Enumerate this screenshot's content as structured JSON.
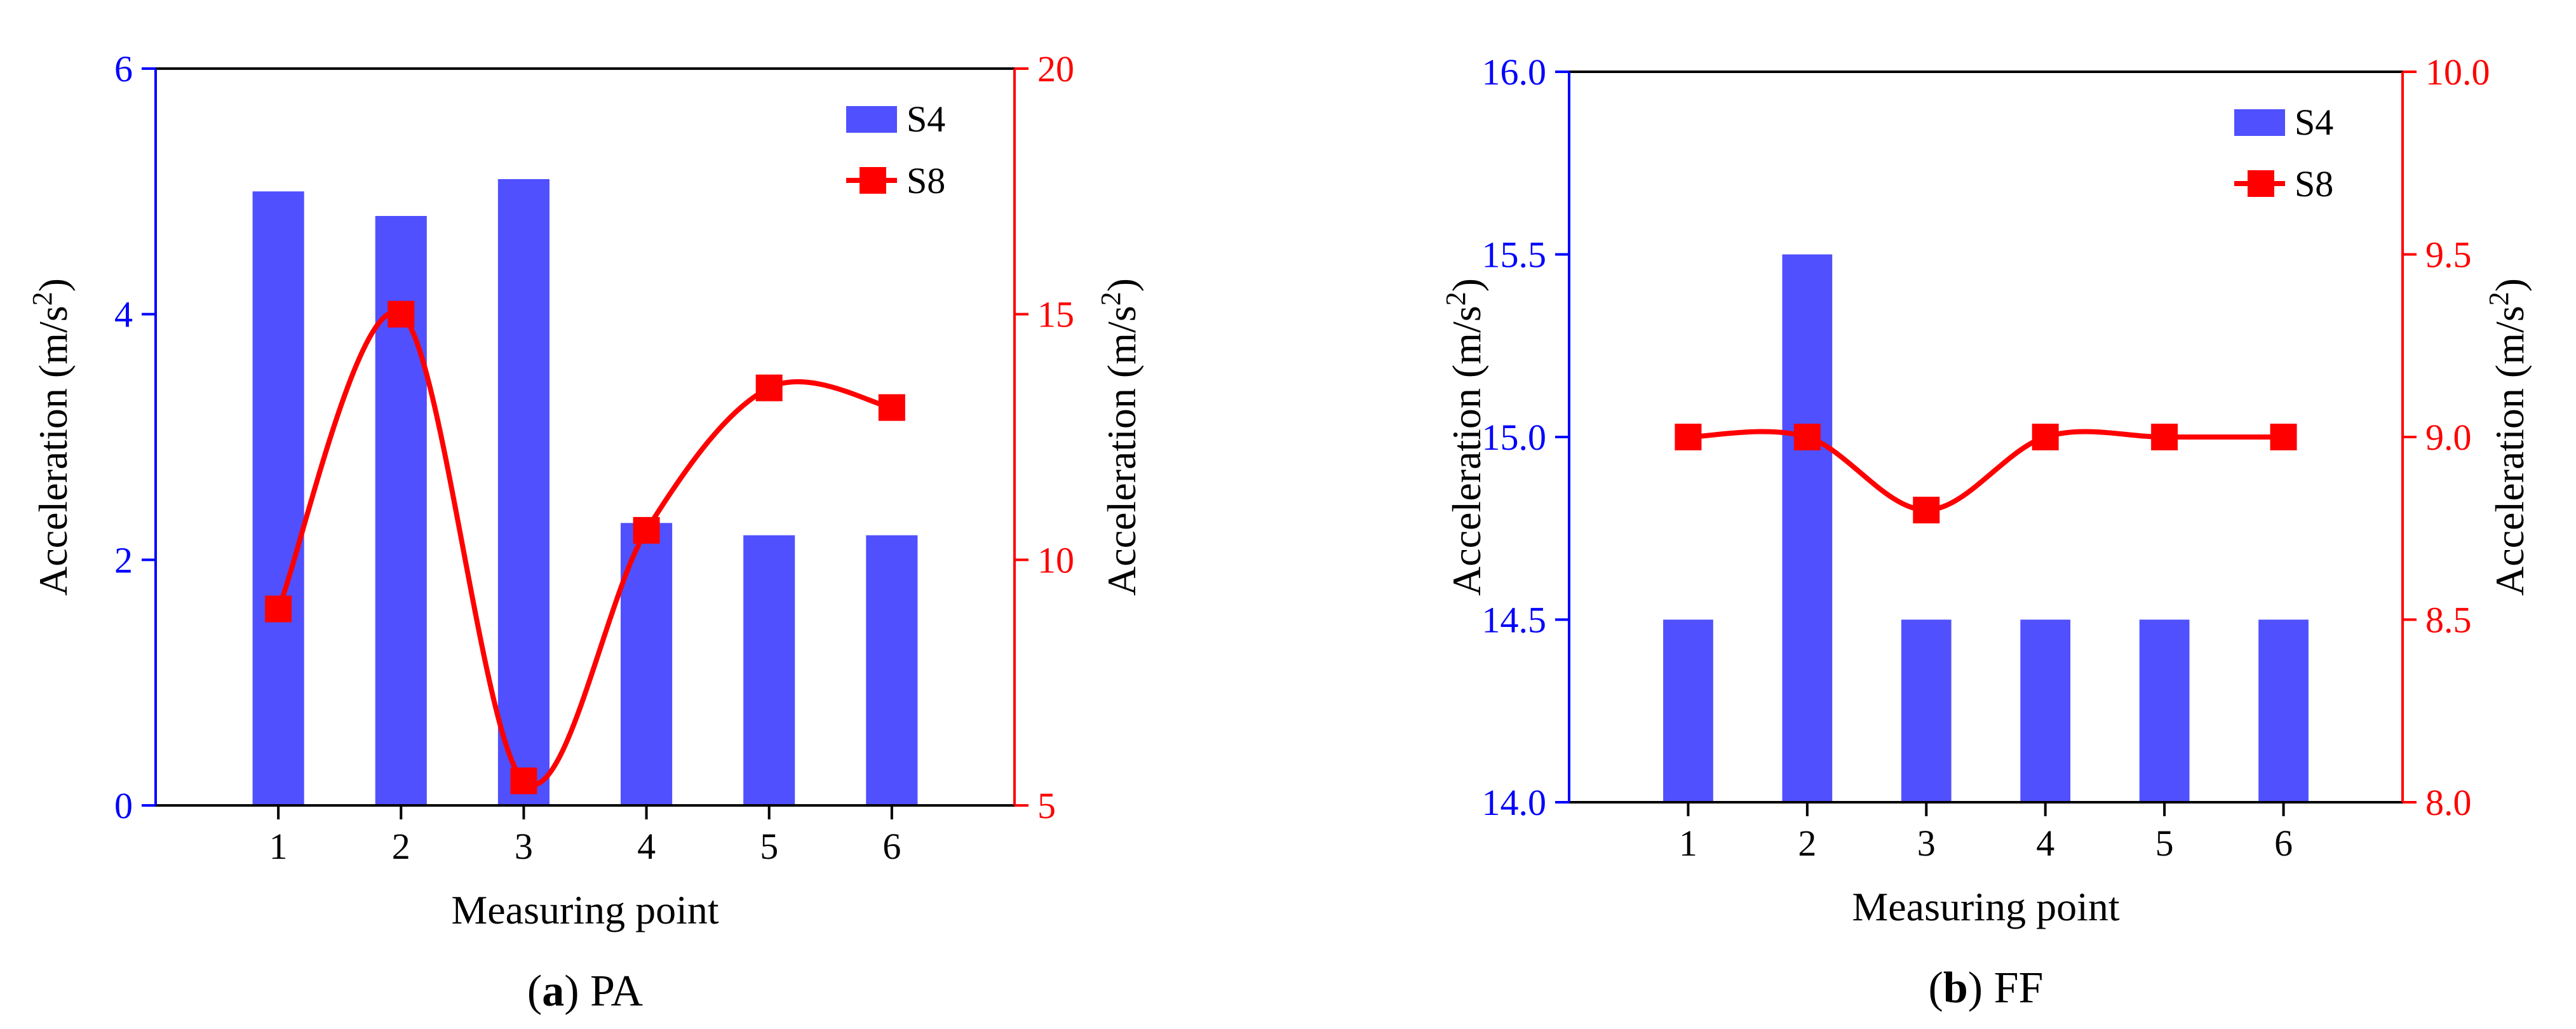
{
  "colors": {
    "bar": "#5050ff",
    "line": "#ff0000",
    "left_axis": "#0000ff",
    "right_axis": "#ff0000",
    "frame": "#000000"
  },
  "chart_data": [
    {
      "id": "a",
      "type": "bar+line",
      "caption_letter": "a",
      "caption_text": "PA",
      "categories": [
        "1",
        "2",
        "3",
        "4",
        "5",
        "6"
      ],
      "xlabel": "Measuring point",
      "ylabel_left": "Acceleration (m/s",
      "ylabel_right": "Acceleration (m/s",
      "ylabel_exponent": "2",
      "ylim_left": [
        0,
        6
      ],
      "yticks_left": [
        0,
        2,
        4,
        6
      ],
      "ytick_labels_left": [
        "0",
        "2",
        "4",
        "6"
      ],
      "ylim_right": [
        5,
        20
      ],
      "yticks_right": [
        5,
        10,
        15,
        20
      ],
      "ytick_labels_right": [
        "5",
        "10",
        "15",
        "20"
      ],
      "series": [
        {
          "name": "S4",
          "kind": "bar",
          "axis": "left",
          "values": [
            5.0,
            4.8,
            5.1,
            2.3,
            2.2,
            2.2
          ]
        },
        {
          "name": "S8",
          "kind": "line",
          "axis": "right",
          "smooth": true,
          "marker": "square",
          "values": [
            9.0,
            15.0,
            5.5,
            10.6,
            13.5,
            13.1
          ]
        }
      ],
      "legend_position": "top-right"
    },
    {
      "id": "b",
      "type": "bar+line",
      "caption_letter": "b",
      "caption_text": "FF",
      "categories": [
        "1",
        "2",
        "3",
        "4",
        "5",
        "6"
      ],
      "xlabel": "Measuring point",
      "ylabel_left": "Acceleration (m/s",
      "ylabel_right": "Acceleration (m/s",
      "ylabel_exponent": "2",
      "ylim_left": [
        14.0,
        16.0
      ],
      "yticks_left": [
        14.0,
        14.5,
        15.0,
        15.5,
        16.0
      ],
      "ytick_labels_left": [
        "14.0",
        "14.5",
        "15.0",
        "15.5",
        "16.0"
      ],
      "ylim_right": [
        8.0,
        10.0
      ],
      "yticks_right": [
        8.0,
        8.5,
        9.0,
        9.5,
        10.0
      ],
      "ytick_labels_right": [
        "8.0",
        "8.5",
        "9.0",
        "9.5",
        "10.0"
      ],
      "series": [
        {
          "name": "S4",
          "kind": "bar",
          "axis": "left",
          "values": [
            14.5,
            15.5,
            14.5,
            14.5,
            14.5,
            14.5
          ]
        },
        {
          "name": "S8",
          "kind": "line",
          "axis": "right",
          "smooth": true,
          "marker": "square",
          "values": [
            9.0,
            9.0,
            8.8,
            9.0,
            9.0,
            9.0
          ]
        }
      ],
      "legend_position": "top-right"
    }
  ]
}
